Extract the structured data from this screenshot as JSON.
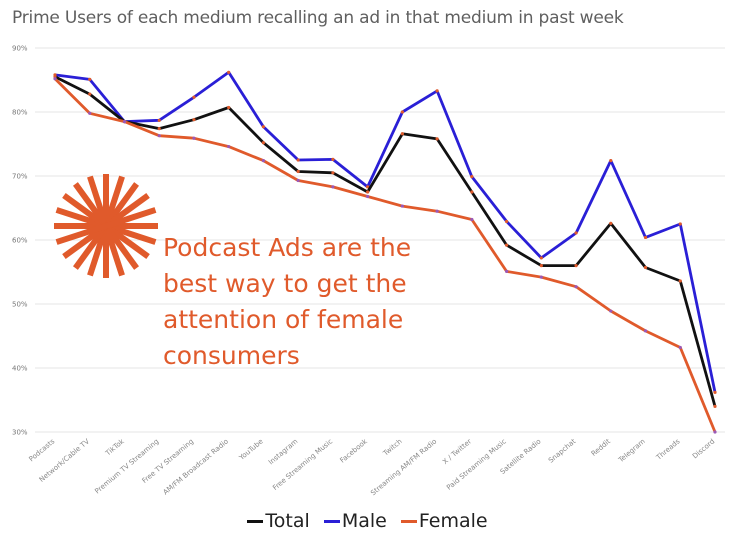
{
  "chart_data": {
    "type": "line",
    "title": "Prime Users of each medium recalling an ad in that medium in past week",
    "ylim": [
      30,
      90
    ],
    "yticks": [
      30,
      40,
      50,
      60,
      70,
      80,
      90
    ],
    "ytick_labels": [
      "30%",
      "40%",
      "50%",
      "60%",
      "70%",
      "80%",
      "90%"
    ],
    "grid": true,
    "legend_position": "bottom",
    "categories": [
      "Podcasts",
      "Network/Cable TV",
      "TikTok",
      "Premium TV Streaming",
      "Free TV Streaming",
      "AM/FM Broadcast Radio",
      "YouTube",
      "Instagram",
      "Free Streaming Music",
      "Facebook",
      "Twitch",
      "Streaming AM/FM Radio",
      "X / Twitter",
      "Paid Streaming Music",
      "Satellite Radio",
      "Snapchat",
      "Reddit",
      "Telegram",
      "Threads",
      "Discord"
    ],
    "series": [
      {
        "name": "Total",
        "color": "#111111",
        "marker": "#e05a2b",
        "values": [
          85.5,
          82.8,
          78.5,
          77.4,
          78.8,
          80.7,
          75.2,
          70.7,
          70.5,
          67.5,
          76.6,
          75.8,
          67.5,
          59.2,
          56.0,
          56.0,
          62.6,
          55.7,
          53.6,
          34.0
        ]
      },
      {
        "name": "Male",
        "color": "#2a1fd6",
        "marker": "#e05a2b",
        "values": [
          85.8,
          85.1,
          78.5,
          78.7,
          82.3,
          86.2,
          77.7,
          72.5,
          72.6,
          68.3,
          80.0,
          83.3,
          69.9,
          62.9,
          57.2,
          61.1,
          72.4,
          60.4,
          62.5,
          36.2
        ]
      },
      {
        "name": "Female",
        "color": "#e05a2b",
        "marker": "#9b59b6",
        "values": [
          85.2,
          79.8,
          78.5,
          76.3,
          75.9,
          74.6,
          72.4,
          69.3,
          68.3,
          66.8,
          65.3,
          64.5,
          63.2,
          55.1,
          54.2,
          52.7,
          48.9,
          45.8,
          43.2,
          30.0
        ]
      }
    ]
  },
  "callout": {
    "text": "Podcast Ads are the best way to get the attention of female consumers",
    "color": "#e05a2b",
    "icon": "starburst-icon"
  },
  "legend": {
    "items": [
      {
        "label": "Total",
        "color": "#111111"
      },
      {
        "label": "Male",
        "color": "#2a1fd6"
      },
      {
        "label": "Female",
        "color": "#e05a2b"
      }
    ]
  }
}
